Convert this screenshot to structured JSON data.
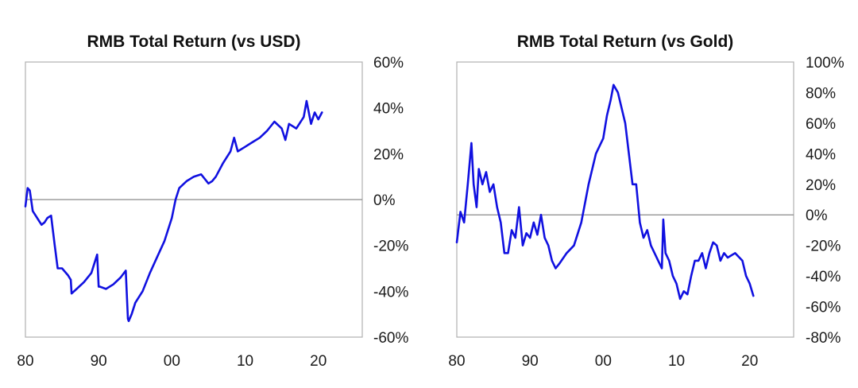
{
  "chart_data": [
    {
      "type": "line",
      "title": "RMB Total Return (vs USD)",
      "x_tick_labels": [
        "80",
        "90",
        "00",
        "10",
        "20"
      ],
      "x_ticks": [
        1980,
        1990,
        2000,
        2010,
        2020
      ],
      "xlim": [
        1980,
        2026
      ],
      "y_tick_labels": [
        "60%",
        "40%",
        "20%",
        "0%",
        "-20%",
        "-40%",
        "-60%"
      ],
      "y_ticks": [
        60,
        40,
        20,
        0,
        -20,
        -40,
        -60
      ],
      "ylim": [
        -60,
        60
      ],
      "zero_line": true,
      "y_axis_side": "right",
      "series": [
        {
          "color": "#1010e0",
          "x": [
            1980.0,
            1980.3,
            1980.6,
            1981.0,
            1981.4,
            1981.8,
            1982.2,
            1982.6,
            1983.0,
            1983.5,
            1984.0,
            1984.4,
            1985.0,
            1985.8,
            1986.2,
            1986.3,
            1987.0,
            1988.0,
            1989.0,
            1989.8,
            1990.0,
            1990.2,
            1991.0,
            1992.0,
            1993.0,
            1993.7,
            1994.0,
            1994.1,
            1994.5,
            1995.0,
            1996.0,
            1997.0,
            1998.0,
            1999.0,
            2000.0,
            2000.5,
            2001.0,
            2002.0,
            2003.0,
            2004.0,
            2005.0,
            2005.5,
            2006.0,
            2007.0,
            2008.0,
            2008.5,
            2009.0,
            2010.0,
            2011.0,
            2012.0,
            2013.0,
            2014.0,
            2015.0,
            2015.5,
            2016.0,
            2017.0,
            2018.0,
            2018.4,
            2019.0,
            2019.5,
            2020.0,
            2020.5
          ],
          "values": [
            -3,
            5,
            4,
            -5,
            -7,
            -9,
            -11,
            -10,
            -8,
            -7,
            -20,
            -30,
            -30,
            -33,
            -35,
            -41,
            -39,
            -36,
            -32,
            -24,
            -38,
            -38,
            -39,
            -37,
            -34,
            -31,
            -52,
            -53,
            -50,
            -45,
            -40,
            -32,
            -25,
            -18,
            -8,
            0,
            5,
            8,
            10,
            11,
            7,
            8,
            10,
            16,
            21,
            27,
            21,
            23,
            25,
            27,
            30,
            34,
            31,
            26,
            33,
            31,
            36,
            43,
            33,
            38,
            35,
            38
          ]
        }
      ]
    },
    {
      "type": "line",
      "title": "RMB Total Return (vs Gold)",
      "x_tick_labels": [
        "80",
        "90",
        "00",
        "10",
        "20"
      ],
      "x_ticks": [
        1980,
        1990,
        2000,
        2010,
        2020
      ],
      "xlim": [
        1980,
        2026
      ],
      "y_tick_labels": [
        "100%",
        "80%",
        "60%",
        "40%",
        "20%",
        "0%",
        "-20%",
        "-40%",
        "-60%",
        "-80%"
      ],
      "y_ticks": [
        100,
        80,
        60,
        40,
        20,
        0,
        -20,
        -40,
        -60,
        -80
      ],
      "ylim": [
        -80,
        100
      ],
      "zero_line": true,
      "y_axis_side": "right",
      "series": [
        {
          "color": "#1010e0",
          "x": [
            1980.0,
            1980.5,
            1981.0,
            1981.5,
            1982.0,
            1982.3,
            1982.7,
            1983.0,
            1983.5,
            1984.0,
            1984.5,
            1985.0,
            1985.5,
            1986.0,
            1986.5,
            1987.0,
            1987.5,
            1988.0,
            1988.5,
            1989.0,
            1989.5,
            1990.0,
            1990.5,
            1991.0,
            1991.5,
            1992.0,
            1992.5,
            1993.0,
            1993.5,
            1994.0,
            1995.0,
            1996.0,
            1997.0,
            1998.0,
            1999.0,
            2000.0,
            2000.5,
            2001.0,
            2001.4,
            2002.0,
            2002.5,
            2003.0,
            2003.5,
            2004.0,
            2004.5,
            2005.0,
            2005.5,
            2006.0,
            2006.5,
            2007.0,
            2007.5,
            2008.0,
            2008.2,
            2008.5,
            2009.0,
            2009.5,
            2010.0,
            2010.5,
            2011.0,
            2011.5,
            2012.0,
            2012.5,
            2013.0,
            2013.5,
            2014.0,
            2014.5,
            2015.0,
            2015.5,
            2016.0,
            2016.5,
            2017.0,
            2018.0,
            2019.0,
            2019.5,
            2020.0,
            2020.5
          ],
          "values": [
            -18,
            2,
            -5,
            20,
            47,
            20,
            5,
            30,
            20,
            28,
            15,
            20,
            5,
            -5,
            -25,
            -25,
            -10,
            -15,
            5,
            -20,
            -12,
            -15,
            -5,
            -13,
            0,
            -15,
            -20,
            -30,
            -35,
            -32,
            -25,
            -20,
            -5,
            20,
            40,
            50,
            65,
            75,
            85,
            80,
            70,
            60,
            40,
            20,
            20,
            -5,
            -15,
            -10,
            -20,
            -25,
            -30,
            -35,
            -3,
            -25,
            -30,
            -40,
            -45,
            -55,
            -50,
            -52,
            -40,
            -30,
            -30,
            -25,
            -35,
            -25,
            -18,
            -20,
            -30,
            -25,
            -28,
            -25,
            -30,
            -40,
            -45,
            -53
          ]
        }
      ]
    }
  ]
}
